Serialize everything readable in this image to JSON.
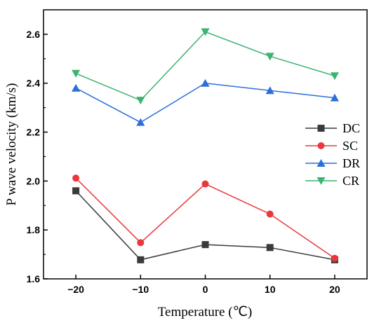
{
  "chart_data": {
    "type": "line",
    "title": "",
    "xlabel": "Temperature (℃)",
    "ylabel": "P wave velocity (km/s)",
    "x": [
      -20,
      -10,
      0,
      10,
      20
    ],
    "xlim": [
      -25,
      25
    ],
    "ylim": [
      1.6,
      2.7
    ],
    "xticks": [
      -20,
      -10,
      0,
      10,
      20
    ],
    "xtick_labels": [
      "−20",
      "−10",
      "0",
      "10",
      "20"
    ],
    "yticks": [
      1.6,
      1.8,
      2.0,
      2.2,
      2.4,
      2.6
    ],
    "ytick_labels": [
      "1.6",
      "1.8",
      "2.0",
      "2.2",
      "2.4",
      "2.6"
    ],
    "grid": false,
    "legend_position": "right",
    "series": [
      {
        "name": "DC",
        "values": [
          1.96,
          1.678,
          1.74,
          1.728,
          1.678
        ],
        "color": "#3a3a3a",
        "marker": "square"
      },
      {
        "name": "SC",
        "values": [
          2.012,
          1.748,
          1.988,
          1.865,
          1.684
        ],
        "color": "#e8383d",
        "marker": "circle"
      },
      {
        "name": "DR",
        "values": [
          2.38,
          2.24,
          2.4,
          2.37,
          2.34
        ],
        "color": "#2a6fdb",
        "marker": "triangle-up"
      },
      {
        "name": "CR",
        "values": [
          2.44,
          2.33,
          2.61,
          2.51,
          2.43
        ],
        "color": "#3cb371",
        "marker": "triangle-down"
      }
    ]
  }
}
